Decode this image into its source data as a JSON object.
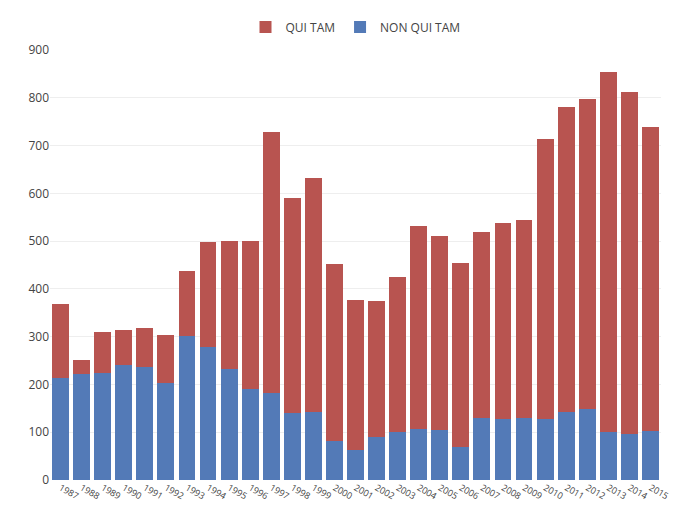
{
  "chart_data": {
    "type": "bar",
    "stacked": true,
    "categories": [
      "1987",
      "1988",
      "1989",
      "1990",
      "1991",
      "1992",
      "1993",
      "1994",
      "1995",
      "1996",
      "1997",
      "1998",
      "1999",
      "2000",
      "2001",
      "2002",
      "2003",
      "2004",
      "2005",
      "2006",
      "2007",
      "2008",
      "2009",
      "2010",
      "2011",
      "2012",
      "2013",
      "2014",
      "2015"
    ],
    "series": [
      {
        "name": "NON QUI TAM",
        "color": "#537ab7",
        "values": [
          213,
          222,
          225,
          240,
          237,
          203,
          302,
          278,
          232,
          190,
          183,
          140,
          142,
          82,
          62,
          90,
          100,
          107,
          105,
          70,
          130,
          128,
          130,
          128,
          143,
          148,
          100,
          97,
          103
        ]
      },
      {
        "name": "QUI TAM",
        "color": "#b85450",
        "values": [
          155,
          30,
          85,
          75,
          82,
          100,
          135,
          220,
          268,
          310,
          545,
          450,
          490,
          370,
          315,
          285,
          325,
          425,
          405,
          385,
          390,
          410,
          415,
          585,
          638,
          650,
          755,
          715,
          635
        ]
      }
    ],
    "ylim": [
      0,
      900
    ],
    "yticks": [
      0,
      100,
      200,
      300,
      400,
      500,
      600,
      700,
      800,
      900
    ],
    "grid": true,
    "legend": "top"
  }
}
